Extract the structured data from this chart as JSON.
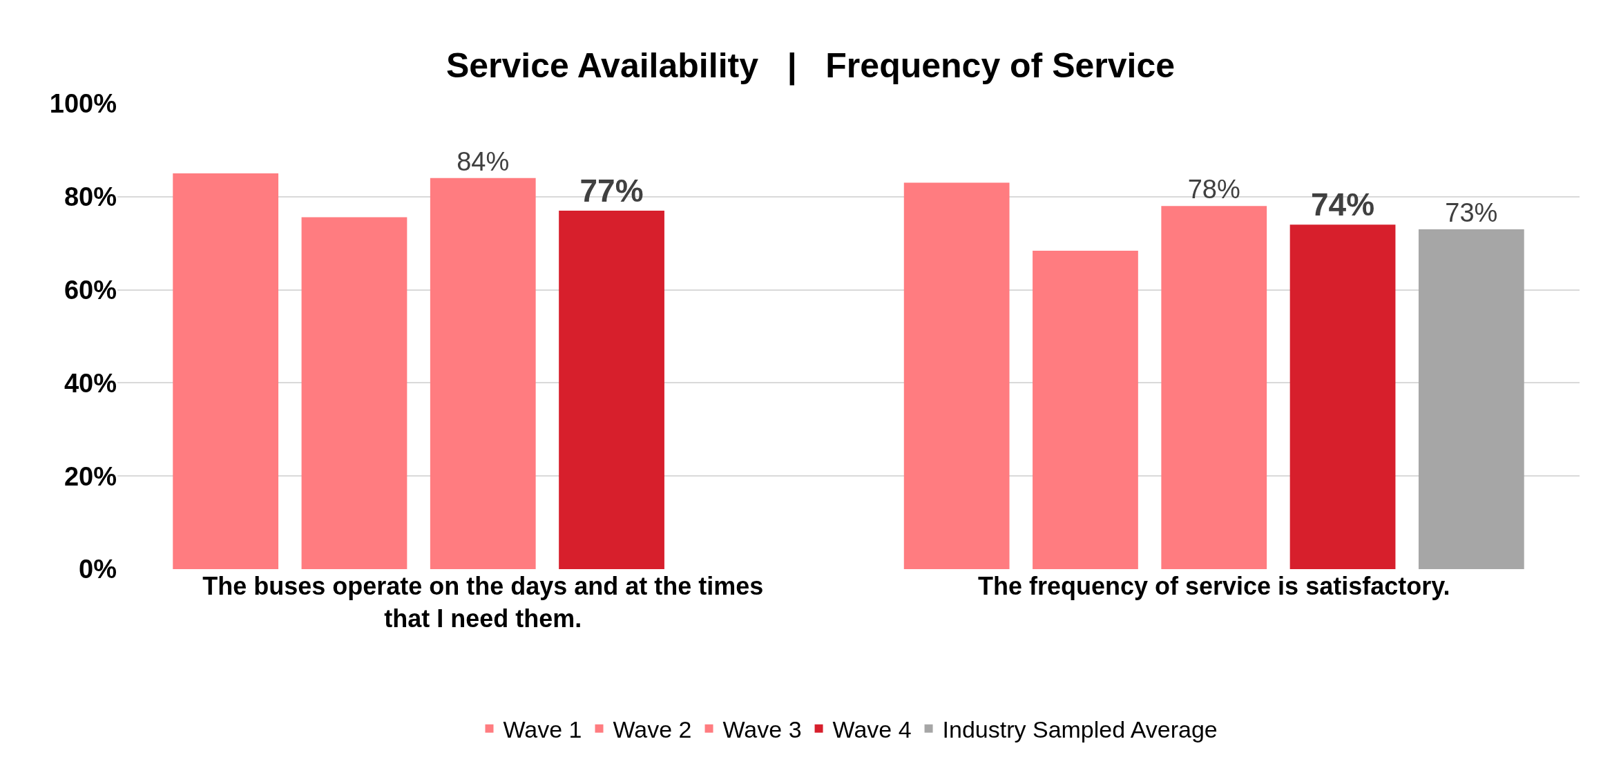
{
  "chart_data": {
    "type": "bar",
    "title": "Service Availability   |   Frequency of Service",
    "categories": [
      "The buses operate on the days and at the times that I need them.",
      "The frequency of service is satisfactory."
    ],
    "series": [
      {
        "name": "Wave 1",
        "color": "#ff7c80",
        "values": [
          85,
          83
        ],
        "value_labels": [
          null,
          null
        ]
      },
      {
        "name": "Wave 2",
        "color": "#ff7c80",
        "values": [
          75.6,
          68.4
        ],
        "value_labels": [
          null,
          null
        ]
      },
      {
        "name": "Wave 3",
        "color": "#ff7c80",
        "values": [
          84,
          78
        ],
        "value_labels": [
          "84%",
          "78%"
        ]
      },
      {
        "name": "Wave 4",
        "color": "#d71f2c",
        "values": [
          77,
          74
        ],
        "value_labels": [
          "77%",
          "74%"
        ]
      },
      {
        "name": "Industry Sampled Average",
        "color": "#a6a6a6",
        "values": [
          null,
          73
        ],
        "value_labels": [
          null,
          "73%"
        ]
      }
    ],
    "ylim": [
      0,
      100
    ],
    "yticks": [
      {
        "value": 0,
        "label": "0%"
      },
      {
        "value": 20,
        "label": "20%"
      },
      {
        "value": 40,
        "label": "40%"
      },
      {
        "value": 60,
        "label": "60%"
      },
      {
        "value": 80,
        "label": "80%"
      },
      {
        "value": 100,
        "label": "100%"
      }
    ],
    "grid": "y",
    "legend": "bottom"
  }
}
